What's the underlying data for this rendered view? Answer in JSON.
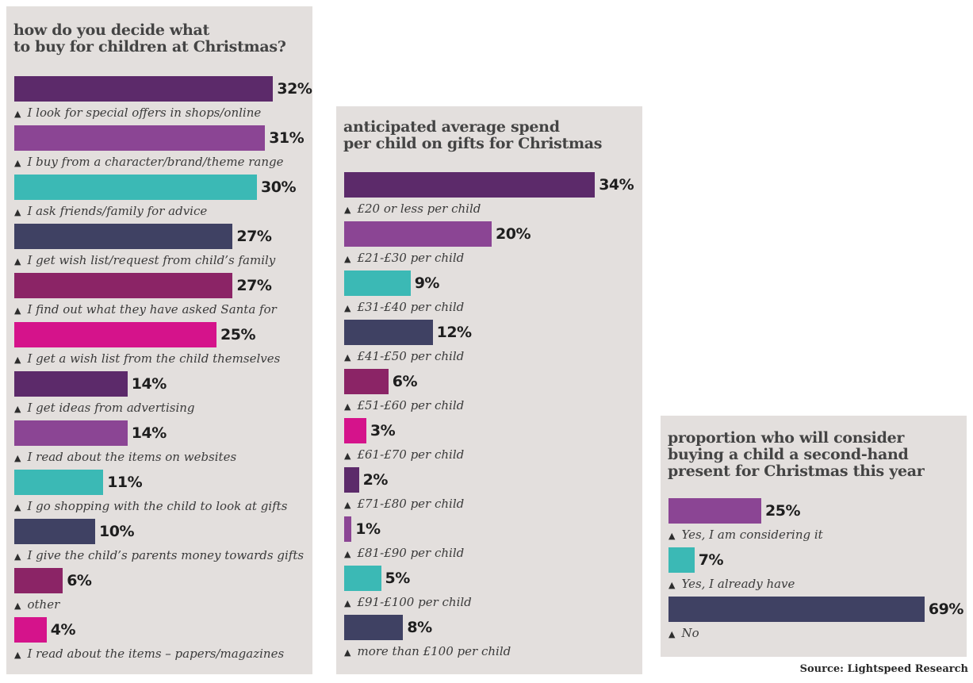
{
  "colors": {
    "dark_purple": "#5c2a6a",
    "purple": "#8b4594",
    "teal": "#3bb9b5",
    "navy": "#3f4163",
    "plum": "#8b2466",
    "magenta": "#d5138b",
    "panel_bg": "#e3dfdd",
    "title_text": "#444444"
  },
  "source": "Source: Lightspeed Research",
  "chart_data": [
    {
      "type": "bar",
      "orientation": "horizontal",
      "title_lines": [
        "how do you decide what",
        "to buy for children at Christmas?"
      ],
      "value_suffix": "%",
      "xlim": [
        0,
        34
      ],
      "categories": [
        "I look for special offers in shops/online",
        "I buy from a character/brand/theme range",
        "I ask friends/family for advice",
        "I get wish list/request from child’s family",
        "I find out what they have asked Santa for",
        "I get a wish list from the child themselves",
        "I get ideas from advertising",
        "I read about the items on websites",
        "I go shopping with the child to look at gifts",
        "I give the child’s parents money towards gifts",
        "other",
        "I read about the items – papers/magazines"
      ],
      "values": [
        32,
        31,
        30,
        27,
        27,
        25,
        14,
        14,
        11,
        10,
        6,
        4
      ],
      "bar_colors": [
        "#5c2a6a",
        "#8b4594",
        "#3bb9b5",
        "#3f4163",
        "#8b2466",
        "#d5138b",
        "#5c2a6a",
        "#8b4594",
        "#3bb9b5",
        "#3f4163",
        "#8b2466",
        "#d5138b"
      ]
    },
    {
      "type": "bar",
      "orientation": "horizontal",
      "title_lines": [
        "anticipated average spend",
        "per child on gifts for Christmas"
      ],
      "value_suffix": "%",
      "xlim": [
        0,
        34
      ],
      "categories": [
        "£20 or less per child",
        "£21-£30 per child",
        "£31-£40 per child",
        "£41-£50 per child",
        "£51-£60 per child",
        "£61-£70 per child",
        "£71-£80 per child",
        "£81-£90 per child",
        "£91-£100 per child",
        "more than £100 per child"
      ],
      "values": [
        34,
        20,
        9,
        12,
        6,
        3,
        2,
        1,
        5,
        8
      ],
      "bar_colors": [
        "#5c2a6a",
        "#8b4594",
        "#3bb9b5",
        "#3f4163",
        "#8b2466",
        "#d5138b",
        "#5c2a6a",
        "#8b4594",
        "#3bb9b5",
        "#3f4163"
      ]
    },
    {
      "type": "bar",
      "orientation": "horizontal",
      "title_lines": [
        "proportion who will consider",
        "buying a child a second-hand",
        "present for Christmas this year"
      ],
      "value_suffix": "%",
      "xlim": [
        0,
        69
      ],
      "categories": [
        "Yes, I am considering it",
        "Yes, I already have",
        "No"
      ],
      "values": [
        25,
        7,
        69
      ],
      "bar_colors": [
        "#8b4594",
        "#3bb9b5",
        "#3f4163"
      ]
    }
  ]
}
